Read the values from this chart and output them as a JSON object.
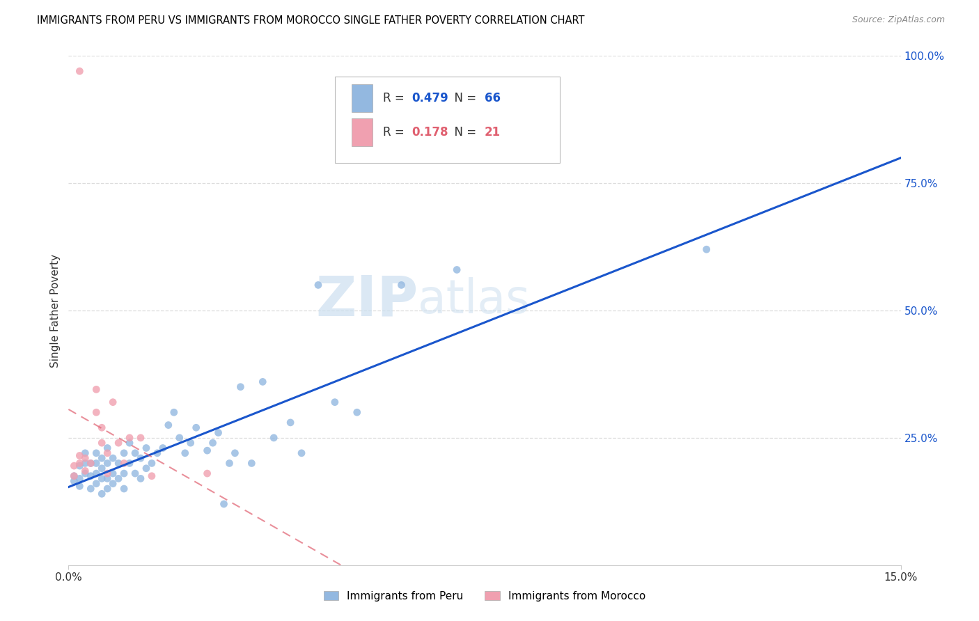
{
  "title": "IMMIGRANTS FROM PERU VS IMMIGRANTS FROM MOROCCO SINGLE FATHER POVERTY CORRELATION CHART",
  "source": "Source: ZipAtlas.com",
  "ylabel": "Single Father Poverty",
  "legend_label_peru": "Immigrants from Peru",
  "legend_label_morocco": "Immigrants from Morocco",
  "r_peru": "0.479",
  "n_peru": "66",
  "r_morocco": "0.178",
  "n_morocco": "21",
  "peru_color": "#93b8e0",
  "morocco_color": "#f0a0b0",
  "regression_peru_color": "#1a56cc",
  "regression_morocco_color": "#e06070",
  "watermark_zip": "ZIP",
  "watermark_atlas": "atlas",
  "peru_scatter_x": [
    0.001,
    0.001,
    0.002,
    0.002,
    0.002,
    0.003,
    0.003,
    0.003,
    0.004,
    0.004,
    0.004,
    0.005,
    0.005,
    0.005,
    0.005,
    0.006,
    0.006,
    0.006,
    0.006,
    0.007,
    0.007,
    0.007,
    0.007,
    0.008,
    0.008,
    0.008,
    0.009,
    0.009,
    0.01,
    0.01,
    0.01,
    0.011,
    0.011,
    0.012,
    0.012,
    0.013,
    0.013,
    0.014,
    0.014,
    0.015,
    0.016,
    0.017,
    0.018,
    0.019,
    0.02,
    0.021,
    0.022,
    0.023,
    0.025,
    0.026,
    0.027,
    0.028,
    0.029,
    0.03,
    0.031,
    0.033,
    0.035,
    0.037,
    0.04,
    0.042,
    0.045,
    0.048,
    0.052,
    0.06,
    0.07,
    0.115
  ],
  "peru_scatter_y": [
    0.175,
    0.165,
    0.195,
    0.155,
    0.17,
    0.18,
    0.2,
    0.22,
    0.15,
    0.175,
    0.2,
    0.16,
    0.18,
    0.2,
    0.22,
    0.14,
    0.17,
    0.19,
    0.21,
    0.15,
    0.17,
    0.2,
    0.23,
    0.16,
    0.18,
    0.21,
    0.17,
    0.2,
    0.15,
    0.18,
    0.22,
    0.2,
    0.24,
    0.18,
    0.22,
    0.17,
    0.21,
    0.19,
    0.23,
    0.2,
    0.22,
    0.23,
    0.275,
    0.3,
    0.25,
    0.22,
    0.24,
    0.27,
    0.225,
    0.24,
    0.26,
    0.12,
    0.2,
    0.22,
    0.35,
    0.2,
    0.36,
    0.25,
    0.28,
    0.22,
    0.55,
    0.32,
    0.3,
    0.55,
    0.58,
    0.62
  ],
  "morocco_scatter_x": [
    0.001,
    0.001,
    0.002,
    0.002,
    0.003,
    0.003,
    0.004,
    0.005,
    0.005,
    0.006,
    0.006,
    0.007,
    0.007,
    0.008,
    0.009,
    0.01,
    0.011,
    0.013,
    0.015,
    0.025,
    0.002
  ],
  "morocco_scatter_y": [
    0.175,
    0.195,
    0.2,
    0.215,
    0.185,
    0.21,
    0.2,
    0.3,
    0.345,
    0.24,
    0.27,
    0.18,
    0.22,
    0.32,
    0.24,
    0.2,
    0.25,
    0.25,
    0.175,
    0.18,
    0.97
  ],
  "xlim": [
    0.0,
    0.15
  ],
  "ylim": [
    0.0,
    1.0
  ],
  "ytick_vals": [
    0.25,
    0.5,
    0.75,
    1.0
  ],
  "ytick_labels": [
    "25.0%",
    "50.0%",
    "75.0%",
    "100.0%"
  ],
  "xtick_vals": [
    0.0,
    0.15
  ],
  "xtick_labels": [
    "0.0%",
    "15.0%"
  ],
  "grid_color": "#dddddd",
  "grid_style": "--"
}
